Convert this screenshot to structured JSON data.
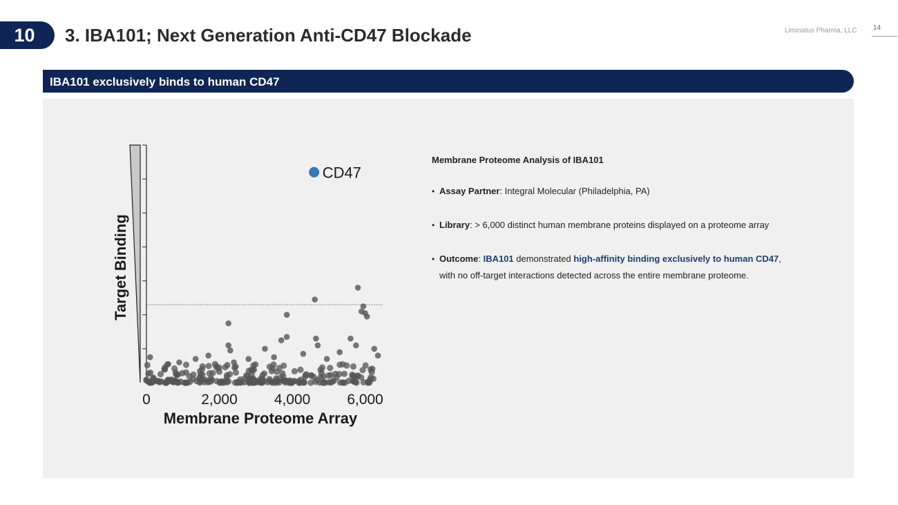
{
  "header": {
    "section_number": "10",
    "title": "3. IBA101; Next Generation Anti-CD47 Blockade",
    "company": "Liminatus Pharma, LLC",
    "page_number": "14"
  },
  "banner": {
    "text": "IBA101 exclusively binds to human CD47"
  },
  "analysis": {
    "heading": "Membrane Proteome Analysis of IBA101",
    "assay_label": "Assay Partner",
    "assay_value": ": Integral Molecular (Philadelphia, PA)",
    "library_label": "Library",
    "library_value": ": > 6,000 distinct human membrane proteins displayed on a proteome array",
    "outcome_label": "Outcome",
    "outcome_sep": ": ",
    "outcome_subject": "IBA101",
    "outcome_mid": " demonstrated ",
    "outcome_highlight": "high-affinity binding exclusively to human CD47",
    "outcome_tail": ",",
    "outcome_line2": "with no off-target interactions detected across the entire membrane proteome."
  },
  "colors": {
    "navy": "#0f2556",
    "highlight": "#1f3d6e",
    "cd47_point": "#3a78b5",
    "points": "#555555"
  },
  "chart_data": {
    "type": "scatter",
    "xlabel": "Membrane Proteome Array",
    "ylabel": "Target Binding",
    "x_ticks": [
      "0",
      "2,000",
      "4,000",
      "6,000"
    ],
    "xlim": [
      0,
      6500
    ],
    "legend": "CD47",
    "highlighted_point": {
      "name": "CD47",
      "x": 4600,
      "y": 6.2
    },
    "threshold_y": 2.3,
    "points": [
      {
        "x": 2250,
        "y": 1.75
      },
      {
        "x": 3850,
        "y": 2.0
      },
      {
        "x": 4620,
        "y": 2.45
      },
      {
        "x": 5800,
        "y": 2.8
      },
      {
        "x": 5950,
        "y": 2.25
      },
      {
        "x": 6000,
        "y": 2.05
      },
      {
        "x": 6050,
        "y": 1.95
      },
      {
        "x": 5900,
        "y": 2.1
      },
      {
        "x": 3700,
        "y": 1.25
      },
      {
        "x": 3850,
        "y": 1.35
      },
      {
        "x": 4650,
        "y": 1.3
      },
      {
        "x": 4700,
        "y": 1.1
      },
      {
        "x": 5600,
        "y": 1.3
      },
      {
        "x": 5750,
        "y": 1.1
      },
      {
        "x": 2250,
        "y": 1.1
      },
      {
        "x": 2300,
        "y": 0.95
      },
      {
        "x": 3250,
        "y": 1.0
      },
      {
        "x": 6250,
        "y": 1.0
      },
      {
        "x": 100,
        "y": 0.75
      },
      {
        "x": 1350,
        "y": 0.7
      },
      {
        "x": 1700,
        "y": 0.8
      },
      {
        "x": 2800,
        "y": 0.7
      },
      {
        "x": 4300,
        "y": 0.85
      },
      {
        "x": 5300,
        "y": 0.9
      },
      {
        "x": 6350,
        "y": 0.8
      },
      {
        "x": 2400,
        "y": 0.6
      },
      {
        "x": 3500,
        "y": 0.75
      },
      {
        "x": 4950,
        "y": 0.7
      },
      {
        "x": 900,
        "y": 0.6
      },
      {
        "x": 600,
        "y": 0.55
      }
    ]
  }
}
